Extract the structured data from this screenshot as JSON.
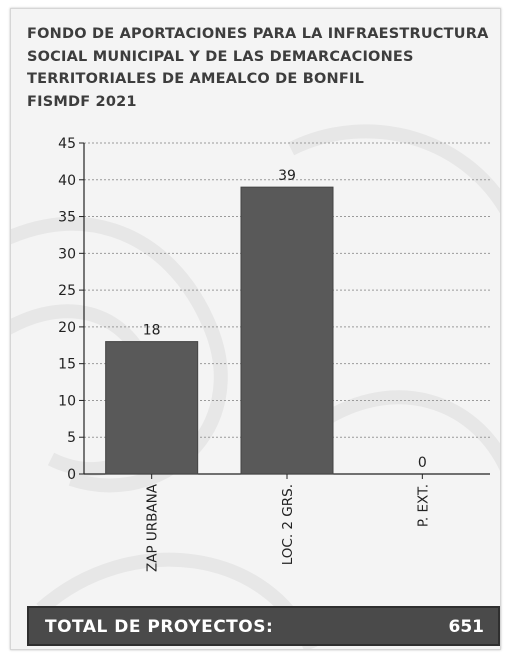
{
  "title_lines": [
    "FONDO DE APORTACIONES PARA LA INFRAESTRUCTURA",
    "SOCIAL MUNICIPAL Y DE LAS DEMARCACIONES",
    "TERRITORIALES DE AMEALCO DE BONFIL",
    "FISMDF 2021"
  ],
  "chart_data": {
    "type": "bar",
    "categories": [
      "ZAP URBANA",
      "LOC. 2 GRS.",
      "P. EXT."
    ],
    "values": [
      18,
      39,
      0
    ],
    "ylim": [
      0,
      45
    ],
    "yticks": [
      0,
      5,
      10,
      15,
      20,
      25,
      30,
      35,
      40,
      45
    ],
    "grid": true,
    "bar_color": "#595959",
    "grid_color": "#9a9a9a"
  },
  "footer": {
    "label": "TOTAL DE PROYECTOS:",
    "value": "651"
  }
}
